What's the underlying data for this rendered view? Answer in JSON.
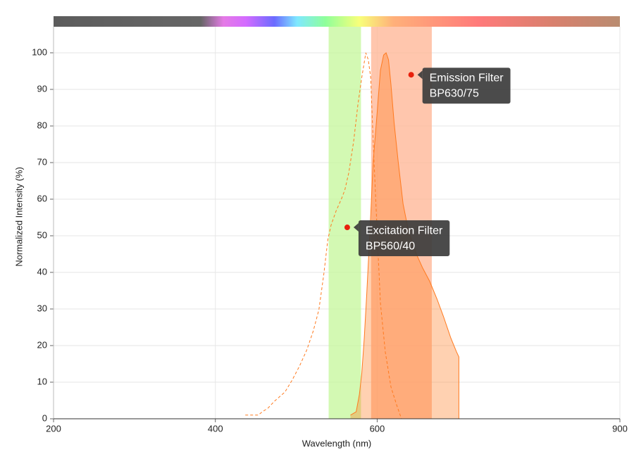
{
  "chart_data": {
    "type": "line",
    "xlabel": "Wavelength (nm)",
    "ylabel": "Normalized Intensity (%)",
    "xlim": [
      200,
      900
    ],
    "ylim": [
      0,
      100
    ],
    "xticks": [
      200,
      400,
      600,
      900
    ],
    "yticks": [
      0,
      10,
      20,
      30,
      40,
      50,
      60,
      70,
      80,
      90,
      100
    ],
    "grid": true,
    "filters": [
      {
        "name": "Excitation Filter",
        "label": "BP560/40",
        "center": 560,
        "width": 40,
        "color": "#c8f7a0",
        "marker_x": 563,
        "marker_y": 52.3
      },
      {
        "name": "Emission Filter",
        "label": "BP630/75",
        "center": 630,
        "width": 75,
        "color": "#ffb898",
        "marker_x": 642,
        "marker_y": 94
      }
    ],
    "series": [
      {
        "color": "#ff7a1f",
        "dashed": true,
        "filled": false,
        "x": [
          437,
          453,
          458,
          465,
          473,
          486,
          495,
          504,
          513,
          521,
          528,
          534,
          539,
          543,
          549,
          556,
          560,
          565,
          571,
          576,
          581,
          586,
          589,
          592,
          595,
          600,
          604,
          610,
          617,
          624,
          630
        ],
        "values": [
          1.0,
          1.0,
          1.9,
          2.9,
          4.8,
          7.3,
          10.6,
          14.4,
          18.8,
          24.0,
          29.8,
          39.4,
          49.0,
          52.9,
          56.7,
          60.2,
          62.5,
          67.3,
          75.9,
          85.6,
          93.3,
          100,
          98.1,
          93.3,
          76.0,
          51.0,
          31.7,
          18.3,
          8.7,
          3.8,
          0
        ]
      },
      {
        "color": "#ff7a1f",
        "dashed": false,
        "filled": true,
        "x": [
          567,
          574,
          578,
          581,
          584,
          587,
          591,
          595,
          600,
          604,
          608,
          611,
          614,
          617,
          621,
          626,
          632,
          639,
          648,
          656,
          665,
          674,
          682,
          691,
          698,
          701,
          701
        ],
        "values": [
          1.0,
          1.9,
          6.7,
          12.5,
          22.1,
          33.7,
          51.0,
          70.2,
          83.7,
          95.2,
          99.4,
          100,
          98.1,
          91.3,
          80.8,
          70.2,
          58.7,
          51.0,
          45.2,
          41.3,
          37.5,
          32.7,
          27.9,
          22.1,
          18.3,
          16.9,
          0
        ]
      }
    ]
  }
}
